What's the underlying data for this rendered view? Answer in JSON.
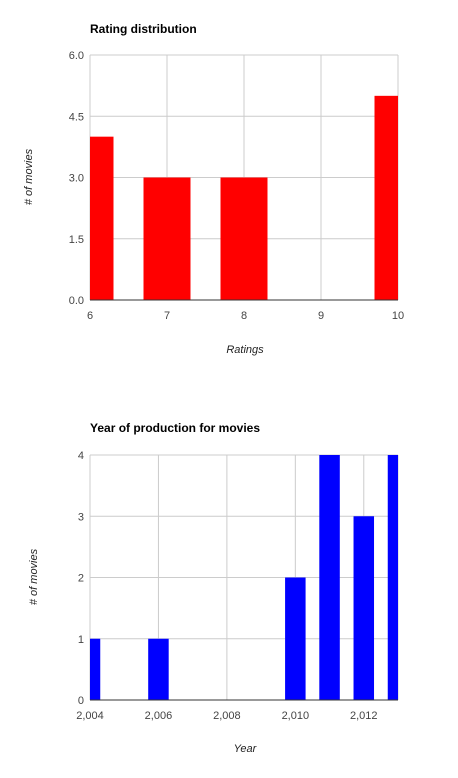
{
  "chart_data": [
    {
      "type": "bar",
      "title": "Rating distribution",
      "xlabel": "Ratings",
      "ylabel": "# of movies",
      "x": [
        6,
        7,
        8,
        10
      ],
      "values": [
        4,
        3,
        3,
        5
      ],
      "xlim": [
        6,
        10
      ],
      "ylim": [
        0,
        6
      ],
      "x_ticks": [
        "6",
        "7",
        "8",
        "9",
        "10"
      ],
      "y_ticks": [
        "0.0",
        "1.5",
        "3.0",
        "4.5",
        "6.0"
      ],
      "color": "#ff0000",
      "grid": true
    },
    {
      "type": "bar",
      "title": "Year of production for movies",
      "xlabel": "Year",
      "ylabel": "# of movies",
      "x": [
        2004,
        2006,
        2010,
        2011,
        2012,
        2013
      ],
      "values": [
        1,
        1,
        2,
        4,
        3,
        4
      ],
      "xlim": [
        2004,
        2013
      ],
      "ylim": [
        0,
        4
      ],
      "x_ticks": [
        "2,004",
        "2,006",
        "2,008",
        "2,010",
        "2,012"
      ],
      "y_ticks": [
        "0",
        "1",
        "2",
        "3",
        "4"
      ],
      "color": "#0000ff",
      "grid": true
    }
  ]
}
